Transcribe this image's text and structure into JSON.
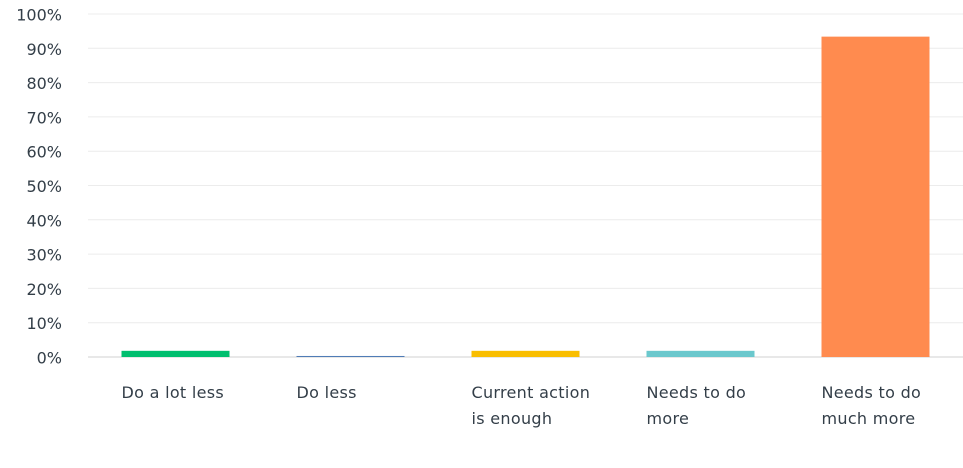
{
  "chart_data": {
    "type": "bar",
    "categories": [
      "Do a lot less",
      "Do less",
      "Current action is enough",
      "Needs to do more",
      "Needs to do much more"
    ],
    "values": [
      1.8,
      0.3,
      1.8,
      1.8,
      93.4
    ],
    "colors": [
      "#00bf6f",
      "#507cb6",
      "#f9be00",
      "#6bc8cd",
      "#ff8b4f"
    ],
    "ylim": [
      0,
      100
    ],
    "yticks": [
      {
        "value": 0,
        "label": "0%"
      },
      {
        "value": 10,
        "label": "10%"
      },
      {
        "value": 20,
        "label": "20%"
      },
      {
        "value": 30,
        "label": "30%"
      },
      {
        "value": 40,
        "label": "40%"
      },
      {
        "value": 50,
        "label": "50%"
      },
      {
        "value": 60,
        "label": "60%"
      },
      {
        "value": 70,
        "label": "70%"
      },
      {
        "value": 80,
        "label": "80%"
      },
      {
        "value": 90,
        "label": "90%"
      },
      {
        "value": 100,
        "label": "100%"
      }
    ],
    "grid": true
  }
}
